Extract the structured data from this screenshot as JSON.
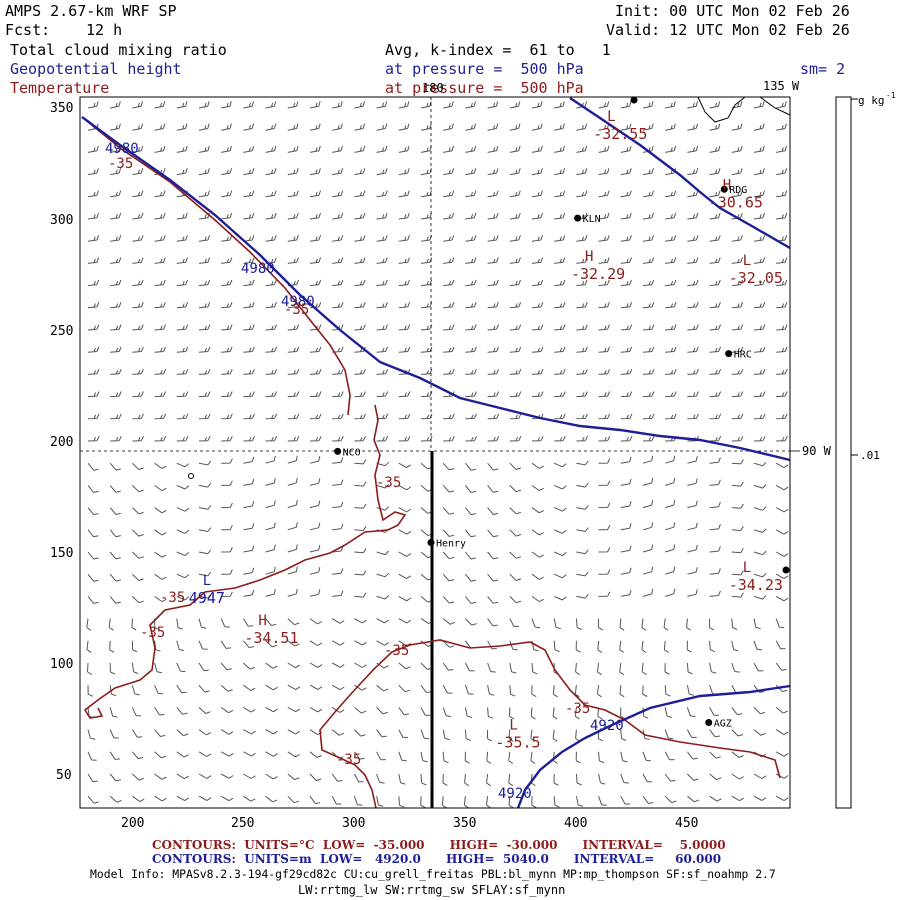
{
  "header": {
    "title": "AMPS 2.67-km WRF SP",
    "fcst_label": "Fcst:",
    "fcst_value": "12 h",
    "init": "Init: 00 UTC Mon 02 Feb 26",
    "valid": "Valid: 12 UTC Mon 02 Feb 26",
    "field_cloud": "Total cloud mixing ratio",
    "field_geo": "Geopotential height",
    "field_temp": "Temperature",
    "avg_k": "Avg, k-index =  61 to   1",
    "pressure_geo": "at pressure =  500 hPa",
    "pressure_temp": "at pressure =  500 hPa",
    "smoothing": "sm= 2"
  },
  "map": {
    "x_ticks": [
      "200",
      "250",
      "300",
      "350",
      "400",
      "450"
    ],
    "y_ticks": [
      "350",
      "300",
      "250",
      "200",
      "150",
      "100",
      "50"
    ],
    "lon_labels": [
      "180",
      "135 W",
      "90 W"
    ],
    "stations": [
      {
        "name": "RDG",
        "x": 467,
        "y": 313
      },
      {
        "name": "KLN",
        "x": 401,
        "y": 300
      },
      {
        "name": "HRC",
        "x": 469,
        "y": 239
      },
      {
        "name": "NCO",
        "x": 293,
        "y": 195
      },
      {
        "name": "Henry",
        "x": 335,
        "y": 154
      },
      {
        "name": "AGZ",
        "x": 460,
        "y": 73
      }
    ],
    "highs_lows": [
      {
        "letter": "L",
        "value": "-32.55",
        "x": 408,
        "y": 342
      },
      {
        "letter": "H",
        "value": "-30.65",
        "x": 460,
        "y": 311
      },
      {
        "letter": "H",
        "value": "-32.29",
        "x": 398,
        "y": 279
      },
      {
        "letter": "L",
        "value": "-32.05",
        "x": 469,
        "y": 277
      },
      {
        "letter": "L",
        "value": "-34.23",
        "x": 469,
        "y": 139
      },
      {
        "letter": "H",
        "value": "-34.51",
        "x": 251,
        "y": 115
      },
      {
        "letter": "L",
        "value": "-35.5",
        "x": 364,
        "y": 68
      }
    ],
    "geo_lows": [
      {
        "letter": "L",
        "value": "4947",
        "x": 226,
        "y": 133
      }
    ],
    "geo_labels": [
      "4980",
      "4980",
      "4980",
      "4920",
      "4920"
    ],
    "temp_labels": [
      "-35",
      "-35",
      "-35",
      "-35",
      "-35",
      "-35",
      "-35",
      "-35"
    ]
  },
  "colorbar": {
    "units": "g kg",
    "units_exp": "-1",
    "tick": ".01"
  },
  "footer": {
    "contours_temp": "CONTOURS:  UNITS=°C  LOW=  -35.000      HIGH=  -30.000      INTERVAL=    5.0000",
    "contours_geo": "CONTOURS:  UNITS=m  LOW=   4920.0      HIGH=  5040.0      INTERVAL=     60.000",
    "model_info": "Model Info: MPASv8.2.3-194-gf29cd82c CU:cu_grell_freitas PBL:bl_mynn MP:mp_thompson SF:sf_noahmp 2.7",
    "model_info2": "LW:rrtmg_lw SW:rrtmg_sw SFLAY:sf_mynn"
  },
  "colors": {
    "geopotential": "#1e1e96",
    "temperature": "#8c1c1c",
    "barb": "#555555"
  }
}
